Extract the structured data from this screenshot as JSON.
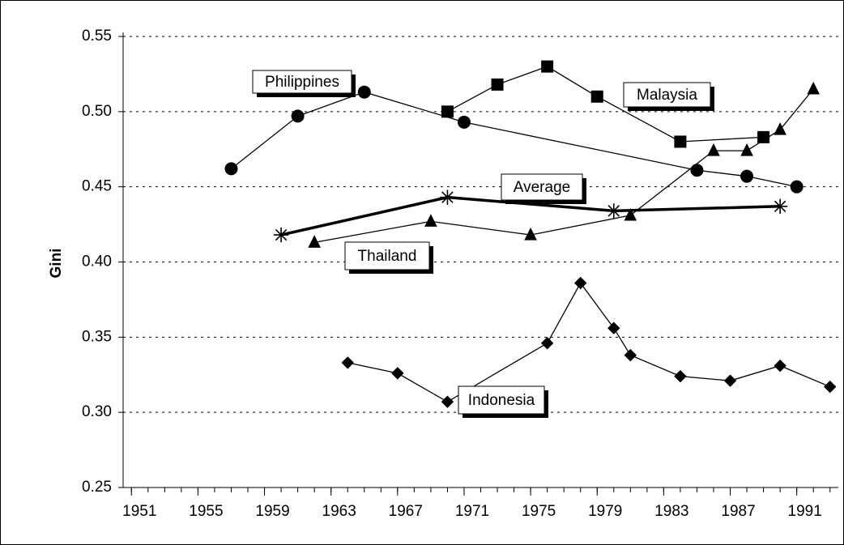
{
  "chart_data": {
    "type": "line",
    "y_label": "Gini",
    "xlim": [
      1950.5,
      1993.5
    ],
    "xticks": [
      1951,
      1955,
      1959,
      1963,
      1967,
      1971,
      1975,
      1979,
      1983,
      1987,
      1991
    ],
    "ylim": [
      0.25,
      0.55
    ],
    "yticks": [
      0.25,
      {
        "value": 0.3,
        "label": "0.30"
      },
      0.35,
      {
        "value": 0.4,
        "label": "0.40"
      },
      0.45,
      {
        "value": 0.5,
        "label": "0.50"
      },
      0.55
    ],
    "grid": true,
    "series": [
      {
        "name": "Philippines",
        "color": "#000000",
        "marker": "circle",
        "line_width": 1.3,
        "x": [
          1957,
          1961,
          1965,
          1971,
          1985,
          1988,
          1991
        ],
        "values": [
          0.462,
          0.497,
          0.513,
          0.493,
          0.461,
          0.457,
          0.45
        ]
      },
      {
        "name": "Malaysia",
        "color": "#000000",
        "marker": "square",
        "line_width": 1.3,
        "x": [
          1970,
          1973,
          1976,
          1979,
          1984,
          1989
        ],
        "values": [
          0.5,
          0.518,
          0.53,
          0.51,
          0.48,
          0.483
        ]
      },
      {
        "name": "Average",
        "color": "#000000",
        "marker": "asterisk",
        "line_width": 3.5,
        "x": [
          1960,
          1970,
          1980,
          1990
        ],
        "values": [
          0.418,
          0.443,
          0.434,
          0.437
        ]
      },
      {
        "name": "Thailand",
        "color": "#000000",
        "marker": "triangle",
        "line_width": 1.3,
        "x": [
          1962,
          1969,
          1975,
          1981,
          1986,
          1988,
          1990,
          1992
        ],
        "values": [
          0.413,
          0.427,
          0.418,
          0.431,
          0.474,
          0.474,
          0.488,
          0.515
        ]
      },
      {
        "name": "Indonesia",
        "color": "#000000",
        "marker": "diamond",
        "line_width": 1.3,
        "x": [
          1964,
          1967,
          1970,
          1976,
          1978,
          1980,
          1981,
          1984,
          1987,
          1990,
          1993
        ],
        "values": [
          0.333,
          0.326,
          0.307,
          0.346,
          0.386,
          0.356,
          0.338,
          0.324,
          0.321,
          0.331,
          0.317
        ]
      }
    ]
  }
}
